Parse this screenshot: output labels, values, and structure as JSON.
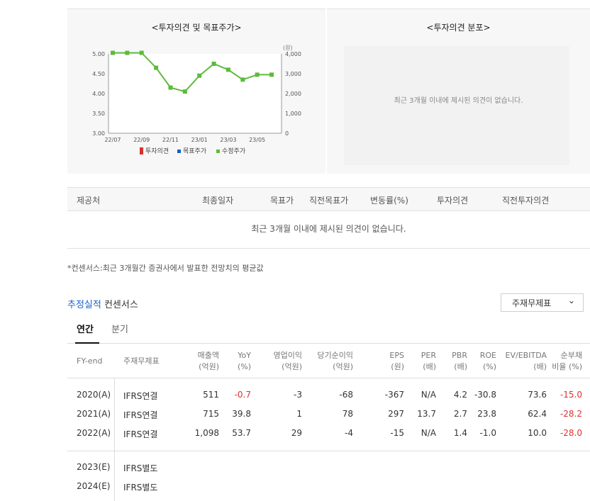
{
  "opinion_panel": {
    "title": "<투자의견 및 목표주가>"
  },
  "distribution_panel": {
    "title": "<투자의견 분포>",
    "empty_message": "최근 3개월 이내에 제시된 의견이 없습니다."
  },
  "chart_data": {
    "type": "line",
    "title": "<투자의견 및 목표주가>",
    "y_left_ticks": [
      "5.00",
      "4.50",
      "4.00",
      "3.50",
      "3.00"
    ],
    "y_left_range": [
      3.0,
      5.0
    ],
    "y_right_unit": "(원)",
    "y_right_ticks": [
      "4,000",
      "3,000",
      "2,000",
      "1,000",
      "0"
    ],
    "y_right_range": [
      0,
      4000
    ],
    "x_ticks": [
      "22/07",
      "22/09",
      "22/11",
      "23/01",
      "23/03",
      "23/05"
    ],
    "legend": [
      "투자의견",
      "목표주가",
      "수정주가"
    ],
    "legend_colors": [
      "#d8322a",
      "#1a5ec0",
      "#5dbb3a"
    ],
    "series": [
      {
        "name": "수정주가",
        "color": "#5dbb3a",
        "x": [
          "22/07",
          "22/08",
          "22/09",
          "22/10",
          "22/11",
          "22/12",
          "23/01",
          "23/02",
          "23/03",
          "23/04",
          "23/05",
          "23/06"
        ],
        "values": [
          4050,
          4050,
          4050,
          3300,
          2300,
          2100,
          2900,
          3500,
          3200,
          2700,
          2950,
          2950
        ]
      }
    ],
    "grid": false
  },
  "opinion_table": {
    "headers": [
      "제공처",
      "최종일자",
      "목표가",
      "직전목표가",
      "변동률(%)",
      "투자의견",
      "직전투자의견"
    ],
    "empty_message": "최근 3개월 이내에 제시된 의견이 없습니다."
  },
  "consensus_note": "*컨센서스:최근 3개월간 증권사에서 발표한 전망치의 평균값",
  "consensus": {
    "title_accent": "추정실적",
    "title_rest": " 컨센서스",
    "select_value": "주재무제표",
    "tabs": [
      "연간",
      "분기"
    ],
    "headers": [
      {
        "l1": "FY-end",
        "l2": ""
      },
      {
        "l1": "주재무제표",
        "l2": ""
      },
      {
        "l1": "매출액",
        "l2": "(억원)"
      },
      {
        "l1": "YoY",
        "l2": "(%)"
      },
      {
        "l1": "영업이익",
        "l2": "(억원)"
      },
      {
        "l1": "당기순이익",
        "l2": "(억원)"
      },
      {
        "l1": "EPS",
        "l2": "(원)"
      },
      {
        "l1": "PER",
        "l2": "(배)"
      },
      {
        "l1": "PBR",
        "l2": "(배)"
      },
      {
        "l1": "ROE",
        "l2": "(%)"
      },
      {
        "l1": "EV/EBITDA",
        "l2": "(배)"
      },
      {
        "l1": "순부채",
        "l2": "비율 (%)"
      }
    ],
    "rows": [
      {
        "fy": "2020(A)",
        "std": "IFRS연결",
        "sales": "511",
        "yoy": "-0.7",
        "op": "-3",
        "net": "-68",
        "eps": "-367",
        "per": "N/A",
        "pbr": "4.2",
        "roe": "-30.8",
        "ev": "73.6",
        "debt": "-15.0"
      },
      {
        "fy": "2021(A)",
        "std": "IFRS연결",
        "sales": "715",
        "yoy": "39.8",
        "op": "1",
        "net": "78",
        "eps": "297",
        "per": "13.7",
        "pbr": "2.7",
        "roe": "23.8",
        "ev": "62.4",
        "debt": "-28.2"
      },
      {
        "fy": "2022(A)",
        "std": "IFRS연결",
        "sales": "1,098",
        "yoy": "53.7",
        "op": "29",
        "net": "-4",
        "eps": "-15",
        "per": "N/A",
        "pbr": "1.4",
        "roe": "-1.0",
        "ev": "10.0",
        "debt": "-28.0"
      },
      {
        "fy": "2023(E)",
        "std": "IFRS별도"
      },
      {
        "fy": "2024(E)",
        "std": "IFRS별도"
      }
    ]
  }
}
